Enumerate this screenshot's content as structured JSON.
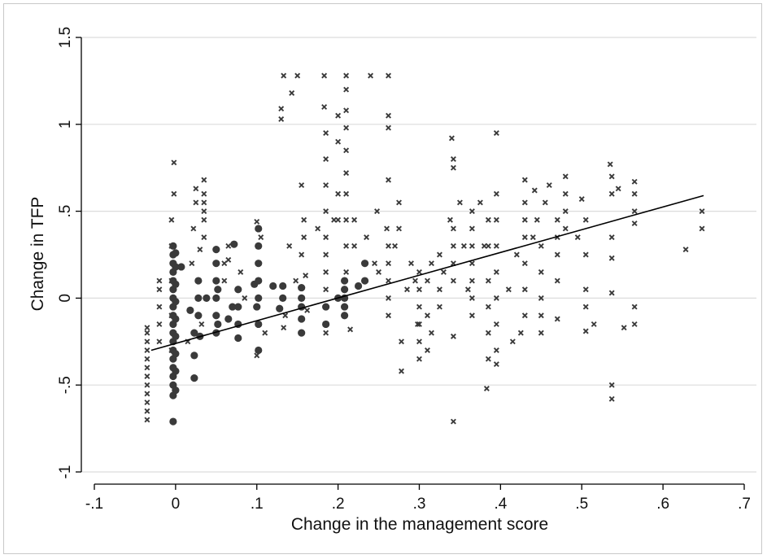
{
  "chart_data": {
    "type": "scatter",
    "title": "",
    "xlabel": "Change in the management score",
    "ylabel": "Change in TFP",
    "xlim": [
      -0.1,
      0.7
    ],
    "ylim": [
      -1,
      1.5
    ],
    "x_ticks": [
      -0.1,
      0,
      0.1,
      0.2,
      0.3,
      0.4,
      0.5,
      0.6,
      0.7
    ],
    "x_tick_labels": [
      "-.1",
      "0",
      ".1",
      ".2",
      ".3",
      ".4",
      ".5",
      ".6",
      ".7"
    ],
    "y_ticks": [
      -1,
      -0.5,
      0,
      0.5,
      1,
      1.5
    ],
    "y_tick_labels": [
      "-1",
      "-.5",
      "0",
      ".5",
      "1",
      "1.5"
    ],
    "grid": "horizontal",
    "legend": "none",
    "colors": {
      "markers": "#3a3a3a",
      "fit_line": "#000000",
      "grid": "#dcdcdc"
    },
    "fit_line": {
      "x": [
        -0.03,
        0.65
      ],
      "y": [
        -0.3,
        0.59
      ]
    },
    "series": [
      {
        "marker": "circle",
        "points": [
          [
            -0.003,
            -0.71
          ],
          [
            -0.003,
            -0.56
          ],
          [
            -0.003,
            -0.5
          ],
          [
            -0.003,
            -0.45
          ],
          [
            -0.003,
            -0.4
          ],
          [
            -0.003,
            -0.35
          ],
          [
            -0.003,
            -0.3
          ],
          [
            -0.003,
            -0.25
          ],
          [
            -0.003,
            -0.2
          ],
          [
            -0.003,
            -0.15
          ],
          [
            -0.003,
            -0.1
          ],
          [
            -0.003,
            -0.05
          ],
          [
            -0.003,
            0.0
          ],
          [
            -0.003,
            0.05
          ],
          [
            -0.003,
            0.1
          ],
          [
            -0.003,
            0.15
          ],
          [
            -0.003,
            0.2
          ],
          [
            -0.003,
            0.25
          ],
          [
            -0.003,
            0.3
          ],
          [
            0.0,
            -0.53
          ],
          [
            0.0,
            -0.42
          ],
          [
            0.0,
            -0.32
          ],
          [
            0.0,
            -0.22
          ],
          [
            0.0,
            -0.12
          ],
          [
            0.0,
            -0.02
          ],
          [
            0.0,
            0.08
          ],
          [
            0.0,
            0.18
          ],
          [
            0.0,
            0.26
          ],
          [
            0.007,
            0.18
          ],
          [
            0.018,
            -0.07
          ],
          [
            0.023,
            -0.33
          ],
          [
            0.023,
            -0.46
          ],
          [
            0.023,
            -0.2
          ],
          [
            0.028,
            -0.1
          ],
          [
            0.028,
            0.0
          ],
          [
            0.028,
            0.1
          ],
          [
            0.03,
            -0.22
          ],
          [
            0.038,
            0.0
          ],
          [
            0.05,
            -0.2
          ],
          [
            0.05,
            -0.1
          ],
          [
            0.05,
            0.0
          ],
          [
            0.05,
            0.1
          ],
          [
            0.05,
            0.2
          ],
          [
            0.05,
            0.28
          ],
          [
            0.052,
            -0.15
          ],
          [
            0.052,
            0.05
          ],
          [
            0.065,
            -0.12
          ],
          [
            0.07,
            -0.05
          ],
          [
            0.072,
            0.31
          ],
          [
            0.077,
            -0.23
          ],
          [
            0.077,
            -0.15
          ],
          [
            0.077,
            -0.05
          ],
          [
            0.077,
            0.05
          ],
          [
            0.097,
            0.08
          ],
          [
            0.1,
            -0.05
          ],
          [
            0.102,
            -0.3
          ],
          [
            0.102,
            0.0
          ],
          [
            0.102,
            0.1
          ],
          [
            0.102,
            0.2
          ],
          [
            0.102,
            0.3
          ],
          [
            0.102,
            0.4
          ],
          [
            0.102,
            -0.15
          ],
          [
            0.12,
            0.07
          ],
          [
            0.128,
            -0.06
          ],
          [
            0.132,
            0.0
          ],
          [
            0.132,
            0.07
          ],
          [
            0.155,
            -0.2
          ],
          [
            0.155,
            -0.12
          ],
          [
            0.155,
            -0.05
          ],
          [
            0.155,
            0.0
          ],
          [
            0.155,
            0.06
          ],
          [
            0.185,
            -0.15
          ],
          [
            0.185,
            -0.05
          ],
          [
            0.2,
            0.0
          ],
          [
            0.208,
            -0.1
          ],
          [
            0.208,
            -0.05
          ],
          [
            0.208,
            0.0
          ],
          [
            0.208,
            0.05
          ],
          [
            0.208,
            0.1
          ],
          [
            0.225,
            0.07
          ],
          [
            0.233,
            0.1
          ],
          [
            0.233,
            0.2
          ]
        ]
      },
      {
        "marker": "cross",
        "points": [
          [
            -0.035,
            -0.7
          ],
          [
            -0.035,
            -0.65
          ],
          [
            -0.035,
            -0.6
          ],
          [
            -0.035,
            -0.55
          ],
          [
            -0.035,
            -0.5
          ],
          [
            -0.035,
            -0.45
          ],
          [
            -0.035,
            -0.4
          ],
          [
            -0.035,
            -0.35
          ],
          [
            -0.035,
            -0.3
          ],
          [
            -0.035,
            -0.25
          ],
          [
            -0.035,
            -0.2
          ],
          [
            -0.035,
            -0.17
          ],
          [
            -0.02,
            -0.25
          ],
          [
            -0.02,
            -0.15
          ],
          [
            -0.02,
            -0.05
          ],
          [
            -0.02,
            0.05
          ],
          [
            -0.02,
            0.1
          ],
          [
            -0.005,
            -0.3
          ],
          [
            -0.005,
            -0.1
          ],
          [
            -0.005,
            0.1
          ],
          [
            -0.005,
            0.3
          ],
          [
            -0.005,
            0.45
          ],
          [
            -0.002,
            0.6
          ],
          [
            -0.002,
            0.78
          ],
          [
            0.015,
            -0.25
          ],
          [
            0.02,
            0.2
          ],
          [
            0.022,
            0.4
          ],
          [
            0.025,
            0.55
          ],
          [
            0.025,
            0.63
          ],
          [
            0.03,
            0.28
          ],
          [
            0.035,
            0.35
          ],
          [
            0.035,
            0.45
          ],
          [
            0.035,
            0.5
          ],
          [
            0.035,
            0.55
          ],
          [
            0.035,
            0.6
          ],
          [
            0.035,
            0.68
          ],
          [
            0.032,
            -0.15
          ],
          [
            0.06,
            0.1
          ],
          [
            0.06,
            0.2
          ],
          [
            0.065,
            0.3
          ],
          [
            0.065,
            0.22
          ],
          [
            0.085,
            0.0
          ],
          [
            0.08,
            0.15
          ],
          [
            0.1,
            0.44
          ],
          [
            0.1,
            -0.33
          ],
          [
            0.11,
            -0.2
          ],
          [
            0.105,
            0.35
          ],
          [
            0.13,
            1.03
          ],
          [
            0.13,
            1.09
          ],
          [
            0.133,
            1.28
          ],
          [
            0.143,
            1.18
          ],
          [
            0.15,
            1.28
          ],
          [
            0.14,
            0.3
          ],
          [
            0.148,
            0.1
          ],
          [
            0.135,
            -0.1
          ],
          [
            0.133,
            -0.17
          ],
          [
            0.155,
            0.65
          ],
          [
            0.158,
            0.45
          ],
          [
            0.158,
            0.35
          ],
          [
            0.155,
            0.25
          ],
          [
            0.16,
            0.13
          ],
          [
            0.162,
            -0.07
          ],
          [
            0.175,
            0.4
          ],
          [
            0.183,
            1.28
          ],
          [
            0.183,
            1.1
          ],
          [
            0.185,
            0.95
          ],
          [
            0.185,
            0.8
          ],
          [
            0.185,
            0.65
          ],
          [
            0.185,
            0.5
          ],
          [
            0.185,
            0.35
          ],
          [
            0.185,
            0.25
          ],
          [
            0.185,
            0.15
          ],
          [
            0.185,
            0.05
          ],
          [
            0.185,
            -0.05
          ],
          [
            0.185,
            -0.2
          ],
          [
            0.195,
            0.45
          ],
          [
            0.2,
            0.6
          ],
          [
            0.2,
            0.9
          ],
          [
            0.2,
            1.05
          ],
          [
            0.2,
            0.45
          ],
          [
            0.21,
            1.28
          ],
          [
            0.21,
            1.2
          ],
          [
            0.21,
            1.08
          ],
          [
            0.21,
            0.98
          ],
          [
            0.21,
            0.85
          ],
          [
            0.21,
            0.72
          ],
          [
            0.21,
            0.6
          ],
          [
            0.21,
            0.45
          ],
          [
            0.21,
            0.3
          ],
          [
            0.21,
            0.15
          ],
          [
            0.215,
            -0.18
          ],
          [
            0.22,
            0.45
          ],
          [
            0.22,
            0.3
          ],
          [
            0.24,
            1.28
          ],
          [
            0.235,
            0.35
          ],
          [
            0.245,
            0.2
          ],
          [
            0.248,
            0.5
          ],
          [
            0.25,
            0.15
          ],
          [
            0.26,
            0.4
          ],
          [
            0.262,
            1.28
          ],
          [
            0.262,
            1.05
          ],
          [
            0.262,
            0.98
          ],
          [
            0.262,
            0.68
          ],
          [
            0.262,
            0.3
          ],
          [
            0.262,
            0.2
          ],
          [
            0.262,
            0.1
          ],
          [
            0.262,
            0.0
          ],
          [
            0.262,
            -0.1
          ],
          [
            0.275,
            0.55
          ],
          [
            0.275,
            0.4
          ],
          [
            0.27,
            0.3
          ],
          [
            0.278,
            -0.42
          ],
          [
            0.278,
            -0.25
          ],
          [
            0.285,
            0.05
          ],
          [
            0.29,
            0.2
          ],
          [
            0.295,
            0.1
          ],
          [
            0.298,
            -0.15
          ],
          [
            0.3,
            -0.35
          ],
          [
            0.3,
            -0.25
          ],
          [
            0.3,
            -0.15
          ],
          [
            0.3,
            -0.05
          ],
          [
            0.3,
            0.05
          ],
          [
            0.3,
            0.15
          ],
          [
            0.31,
            -0.3
          ],
          [
            0.31,
            -0.1
          ],
          [
            0.31,
            0.1
          ],
          [
            0.315,
            0.2
          ],
          [
            0.315,
            -0.2
          ],
          [
            0.325,
            0.25
          ],
          [
            0.325,
            0.05
          ],
          [
            0.325,
            -0.05
          ],
          [
            0.33,
            0.15
          ],
          [
            0.338,
            0.45
          ],
          [
            0.34,
            0.92
          ],
          [
            0.342,
            0.8
          ],
          [
            0.342,
            0.75
          ],
          [
            0.342,
            0.4
          ],
          [
            0.342,
            0.3
          ],
          [
            0.342,
            0.2
          ],
          [
            0.342,
            0.1
          ],
          [
            0.342,
            -0.71
          ],
          [
            0.342,
            -0.22
          ],
          [
            0.35,
            0.55
          ],
          [
            0.355,
            0.3
          ],
          [
            0.36,
            0.05
          ],
          [
            0.365,
            -0.1
          ],
          [
            0.365,
            0.0
          ],
          [
            0.365,
            0.1
          ],
          [
            0.365,
            0.2
          ],
          [
            0.365,
            0.3
          ],
          [
            0.365,
            0.4
          ],
          [
            0.365,
            0.5
          ],
          [
            0.375,
            0.55
          ],
          [
            0.38,
            0.3
          ],
          [
            0.383,
            -0.52
          ],
          [
            0.385,
            -0.35
          ],
          [
            0.385,
            -0.2
          ],
          [
            0.385,
            -0.05
          ],
          [
            0.385,
            0.1
          ],
          [
            0.385,
            0.3
          ],
          [
            0.385,
            0.45
          ],
          [
            0.395,
            0.95
          ],
          [
            0.395,
            0.6
          ],
          [
            0.395,
            0.45
          ],
          [
            0.395,
            0.3
          ],
          [
            0.395,
            0.15
          ],
          [
            0.395,
            0.0
          ],
          [
            0.395,
            -0.15
          ],
          [
            0.395,
            -0.3
          ],
          [
            0.395,
            -0.38
          ],
          [
            0.41,
            0.05
          ],
          [
            0.415,
            -0.25
          ],
          [
            0.42,
            0.25
          ],
          [
            0.425,
            -0.2
          ],
          [
            0.43,
            0.68
          ],
          [
            0.43,
            0.55
          ],
          [
            0.43,
            0.45
          ],
          [
            0.43,
            0.35
          ],
          [
            0.43,
            0.2
          ],
          [
            0.43,
            0.05
          ],
          [
            0.43,
            -0.1
          ],
          [
            0.44,
            0.35
          ],
          [
            0.442,
            0.62
          ],
          [
            0.445,
            0.45
          ],
          [
            0.45,
            0.3
          ],
          [
            0.45,
            0.15
          ],
          [
            0.45,
            0.0
          ],
          [
            0.45,
            -0.1
          ],
          [
            0.45,
            -0.2
          ],
          [
            0.455,
            0.55
          ],
          [
            0.46,
            0.65
          ],
          [
            0.47,
            0.45
          ],
          [
            0.47,
            0.35
          ],
          [
            0.47,
            0.25
          ],
          [
            0.47,
            0.1
          ],
          [
            0.47,
            -0.12
          ],
          [
            0.48,
            0.7
          ],
          [
            0.48,
            0.6
          ],
          [
            0.48,
            0.5
          ],
          [
            0.48,
            0.4
          ],
          [
            0.495,
            0.35
          ],
          [
            0.5,
            0.57
          ],
          [
            0.505,
            0.45
          ],
          [
            0.505,
            0.25
          ],
          [
            0.505,
            0.05
          ],
          [
            0.505,
            -0.05
          ],
          [
            0.505,
            -0.19
          ],
          [
            0.515,
            -0.15
          ],
          [
            0.535,
            0.77
          ],
          [
            0.537,
            0.7
          ],
          [
            0.537,
            0.6
          ],
          [
            0.537,
            0.35
          ],
          [
            0.537,
            0.23
          ],
          [
            0.537,
            0.03
          ],
          [
            0.537,
            -0.5
          ],
          [
            0.537,
            -0.58
          ],
          [
            0.545,
            0.63
          ],
          [
            0.552,
            -0.17
          ],
          [
            0.565,
            0.67
          ],
          [
            0.565,
            0.6
          ],
          [
            0.565,
            0.5
          ],
          [
            0.565,
            0.43
          ],
          [
            0.565,
            -0.05
          ],
          [
            0.565,
            -0.15
          ],
          [
            0.628,
            0.28
          ],
          [
            0.648,
            0.5
          ],
          [
            0.648,
            0.4
          ]
        ]
      }
    ]
  }
}
